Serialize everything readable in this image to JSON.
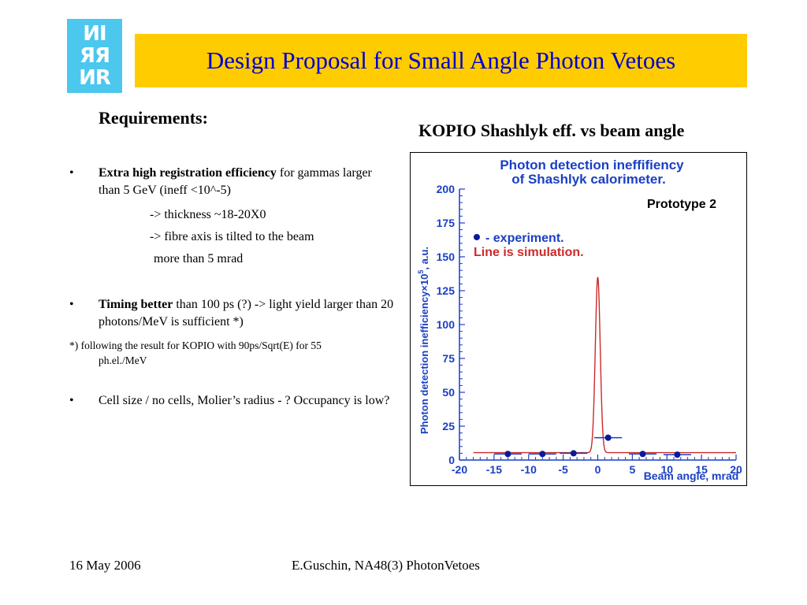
{
  "logo": {
    "lines": [
      "ИI",
      "ЯЯ",
      "ИR"
    ]
  },
  "title": "Design Proposal for Small Angle Photon Vetoes",
  "requirements_heading": "Requirements:",
  "bullets": [
    {
      "marker": "•",
      "bold": "Extra high registration efficiency",
      "rest": " for gammas larger than 5 GeV (ineff <10^-5)"
    },
    {
      "marker": "•",
      "bold": "Timing better",
      "rest": " than 100 ps (?) -> light yield larger than 20 photons/MeV is sufficient *)"
    },
    {
      "marker": "•",
      "bold": "",
      "rest": "Cell size / no cells, Molier’s radius - ? Occupancy is low?"
    }
  ],
  "sub_items": [
    "-> thickness ~18-20X0",
    "-> fibre axis is tilted to the beam",
    "more than 5 mrad"
  ],
  "footnote": {
    "line1": "*) following the result for KOPIO with 90ps/Sqrt(E) for 55",
    "line2": "ph.el./MeV"
  },
  "chart_heading": "KOPIO Shashlyk eff. vs beam angle",
  "chart_data": {
    "type": "scatter",
    "title": "Photon detection ineffifiency of Shashlyk calorimeter.",
    "title_lines": [
      "Photon detection ineffifiency",
      "of Shashlyk calorimeter."
    ],
    "annotation": "Prototype 2",
    "legend_experiment": "-  experiment.",
    "legend_simulation": "Line is simulation.",
    "xlabel": "Beam angle, mrad",
    "ylabel": "Photon detection inefficiency×10",
    "ylabel_exp": "5",
    "ylabel_suffix": ", a.u.",
    "xlim": [
      -20,
      20
    ],
    "ylim": [
      0,
      200
    ],
    "xticks": [
      -20,
      -15,
      -10,
      -5,
      0,
      5,
      10,
      15,
      20
    ],
    "yticks": [
      0,
      25,
      50,
      75,
      100,
      125,
      150,
      175,
      200
    ],
    "series": [
      {
        "name": "experiment",
        "points": [
          {
            "x": -13,
            "y": 4.5,
            "xerr": 2
          },
          {
            "x": -8,
            "y": 4.5,
            "xerr": 2
          },
          {
            "x": -3.5,
            "y": 5,
            "xerr": 2
          },
          {
            "x": 1.5,
            "y": 16.5,
            "xerr": 2
          },
          {
            "x": 6.5,
            "y": 4.5,
            "xerr": 2
          },
          {
            "x": 11.5,
            "y": 4,
            "xerr": 2
          }
        ]
      },
      {
        "name": "simulation",
        "peak_x": 0,
        "peak_y": 135,
        "baseline_y": 5.5,
        "width": 0.5
      }
    ],
    "colors": {
      "axis": "#1a3fc4",
      "title": "#1a3fc4",
      "simulation": "#cc2a2a",
      "point": "#0a1a9a",
      "text": "#000000"
    }
  },
  "footer": {
    "date": "16 May 2006",
    "author": "E.Guschin, NA48(3) PhotonVetoes"
  }
}
